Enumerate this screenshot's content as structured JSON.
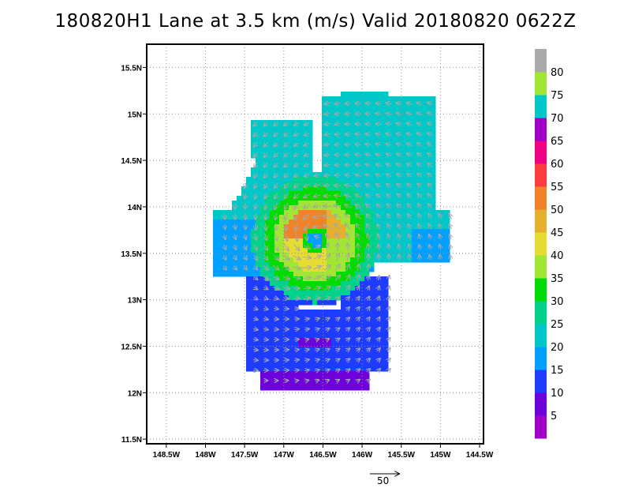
{
  "title": "180820H1 Lane at 3.5 km (m/s) Valid 20180820 0622Z",
  "chart_data": {
    "type": "heatmap",
    "title": "180820H1 Lane at 3.5 km (m/s) Valid 20180820 0622Z",
    "xlim": [
      -148.75,
      -144.45
    ],
    "ylim": [
      11.45,
      15.75
    ],
    "x_ticks": [
      -148.5,
      -148,
      -147.5,
      -147,
      -146.5,
      -146,
      -145.5,
      -145,
      -144.5
    ],
    "x_tick_labels": [
      "148.5W",
      "148W",
      "147.5W",
      "147W",
      "146.5W",
      "146W",
      "145.5W",
      "145W",
      "144.5W"
    ],
    "y_ticks": [
      11.5,
      12,
      12.5,
      13,
      13.5,
      14,
      14.5,
      15,
      15.5
    ],
    "y_tick_labels": [
      "11.5N",
      "12N",
      "12.5N",
      "13N",
      "13.5N",
      "14N",
      "14.5N",
      "15N",
      "15.5N"
    ],
    "grid": true,
    "colorbar": {
      "levels": [
        0,
        5,
        10,
        15,
        20,
        25,
        30,
        35,
        40,
        45,
        50,
        55,
        60,
        65,
        70,
        75,
        80,
        85
      ],
      "labels": [
        "5",
        "10",
        "15",
        "20",
        "25",
        "30",
        "35",
        "40",
        "45",
        "50",
        "55",
        "60",
        "65",
        "70",
        "75",
        "80"
      ],
      "colors": [
        "#a000c8",
        "#6e00dc",
        "#1e3cff",
        "#00a0ff",
        "#00c8c8",
        "#00d28c",
        "#00dc00",
        "#a0e632",
        "#e6dc32",
        "#e6af2d",
        "#f08228",
        "#fa3c3c",
        "#f00082",
        "#a000c8",
        "#00c8c8",
        "#a0e632",
        "#aaaaaa"
      ]
    },
    "storm_center": {
      "lon": -146.6,
      "lat": 13.65
    },
    "reference_vector": {
      "label": "50",
      "speed": 50
    },
    "wind_field_regions": [
      {
        "name": "north-west band",
        "speed": 22
      },
      {
        "name": "north-east band",
        "speed": 22
      },
      {
        "name": "west band",
        "speed": 18
      },
      {
        "name": "south sector",
        "speed": 12
      },
      {
        "name": "southern edge",
        "speed": 6
      },
      {
        "name": "eyewall",
        "speed": 45
      },
      {
        "name": "eye",
        "speed": 18
      }
    ]
  }
}
